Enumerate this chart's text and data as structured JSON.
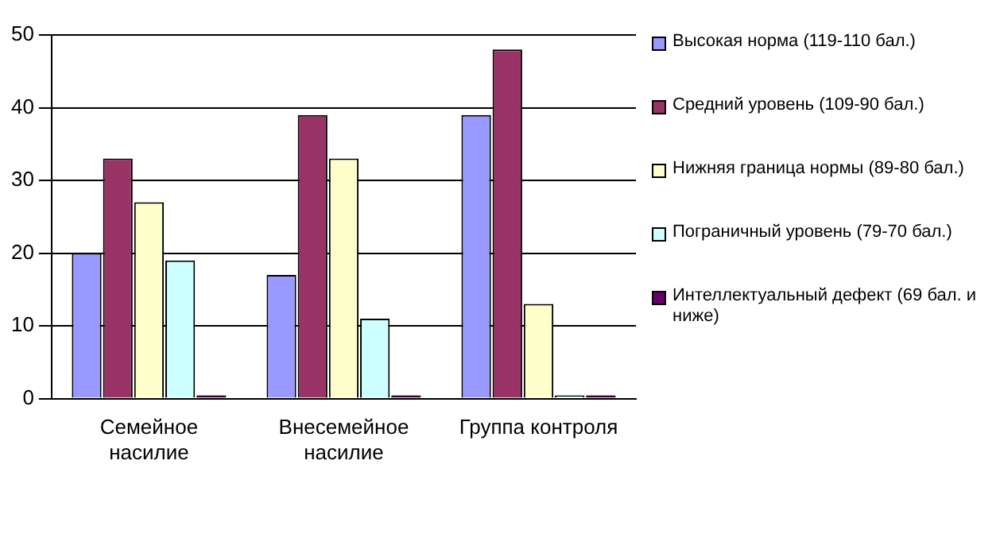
{
  "chart_data": {
    "type": "bar",
    "categories": [
      "Семейное насилие",
      "Внесемейное насилие",
      "Группа контроля"
    ],
    "series": [
      {
        "name": "Высокая норма (119-110 бал.)",
        "color": "#9999ff",
        "values": [
          20,
          17,
          39
        ]
      },
      {
        "name": "Средний уровень (109-90 бал.)",
        "color": "#993366",
        "values": [
          33,
          39,
          48
        ]
      },
      {
        "name": "Нижняя граница нормы (89-80 бал.)",
        "color": "#ffffcc",
        "values": [
          27,
          33,
          13
        ]
      },
      {
        "name": "Пограничный уровень (79-70 бал.)",
        "color": "#ccffff",
        "values": [
          19,
          11,
          0
        ]
      },
      {
        "name": "Интеллектуальный дефект (69 бал. и ниже)",
        "color": "#660066",
        "values": [
          0,
          0,
          0
        ]
      }
    ],
    "ylim": [
      0,
      50
    ],
    "yticks": [
      0,
      10,
      20,
      30,
      40,
      50
    ],
    "grid": "y",
    "legend": "right"
  }
}
